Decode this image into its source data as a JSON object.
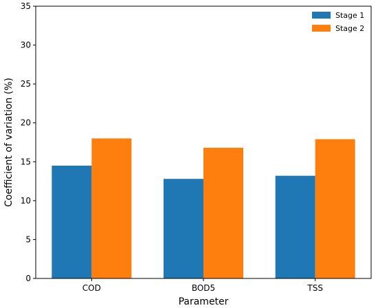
{
  "chart_data": {
    "type": "bar",
    "categories": [
      "COD",
      "BOD5",
      "TSS"
    ],
    "series": [
      {
        "name": "Stage 1",
        "values": [
          14.5,
          12.8,
          13.2
        ],
        "color": "#1f77b4"
      },
      {
        "name": "Stage 2",
        "values": [
          18.0,
          16.8,
          17.9
        ],
        "color": "#ff7f0e"
      }
    ],
    "xlabel": "Parameter",
    "ylabel": "Coefficient of variation (%)",
    "ylim": [
      0,
      35
    ],
    "yticks": [
      0,
      5,
      10,
      15,
      20,
      25,
      30,
      35
    ],
    "legend_position": "top-right",
    "grid": false
  }
}
